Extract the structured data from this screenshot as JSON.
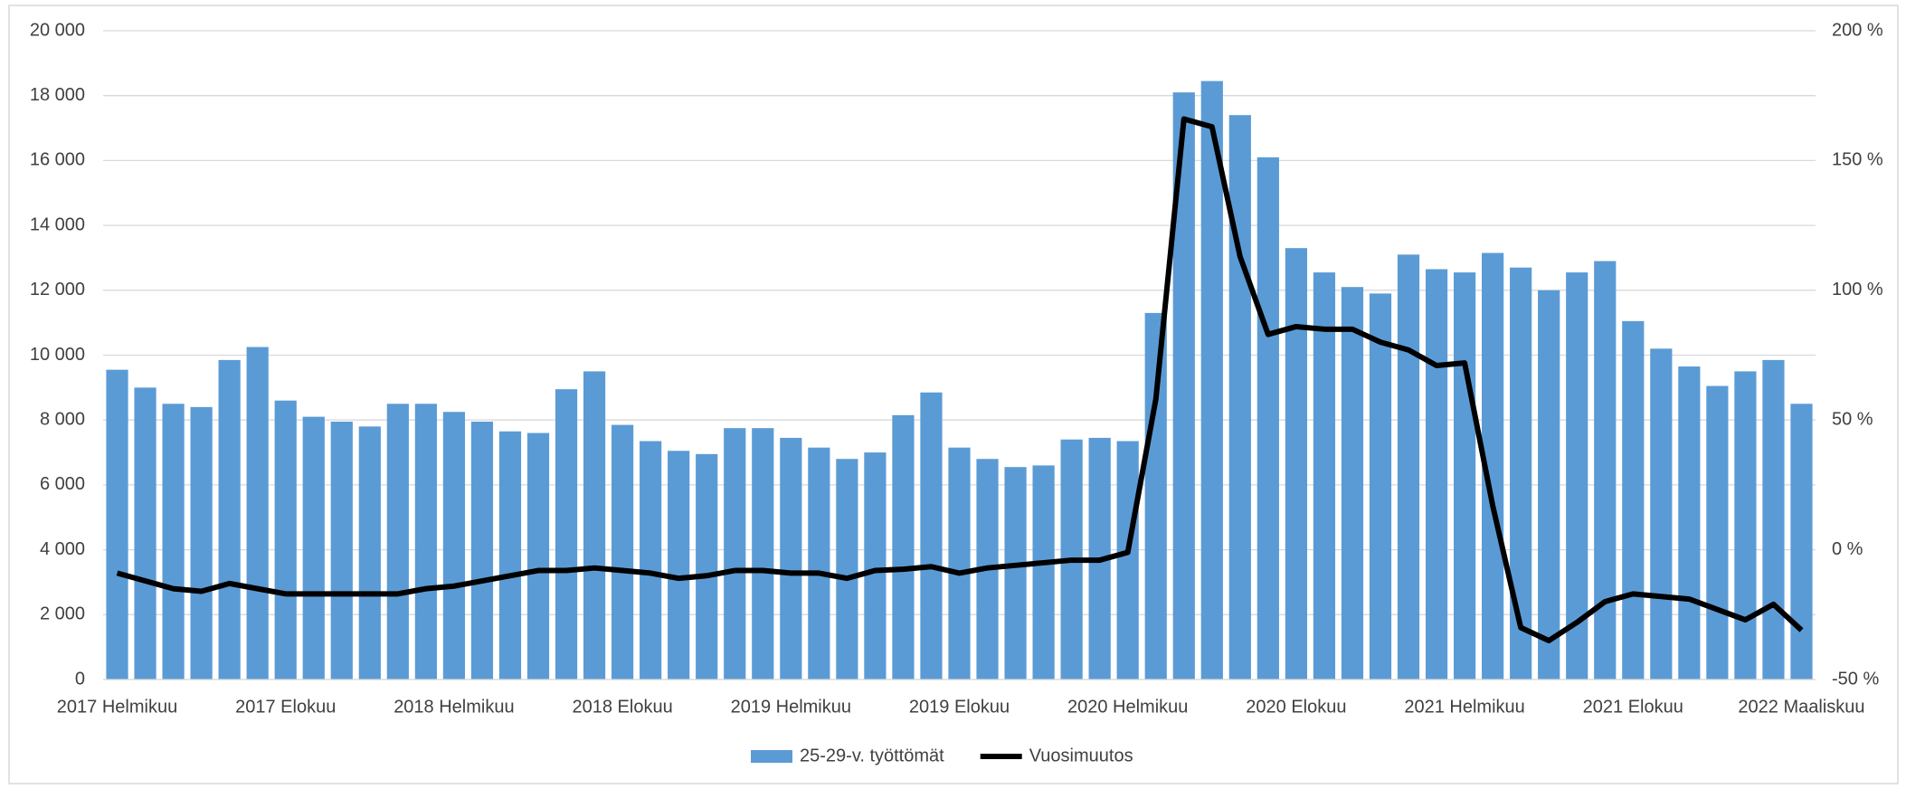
{
  "chart_data": {
    "type": "bar",
    "categories": [
      "2017 Helmikuu",
      null,
      null,
      null,
      null,
      null,
      "2017 Elokuu",
      null,
      null,
      null,
      null,
      null,
      "2018 Helmikuu",
      null,
      null,
      null,
      null,
      null,
      "2018 Elokuu",
      null,
      null,
      null,
      null,
      null,
      "2019 Helmikuu",
      null,
      null,
      null,
      null,
      null,
      "2019 Elokuu",
      null,
      null,
      null,
      null,
      null,
      "2020 Helmikuu",
      null,
      null,
      null,
      null,
      null,
      "2020 Elokuu",
      null,
      null,
      null,
      null,
      null,
      "2021 Helmikuu",
      null,
      null,
      null,
      null,
      null,
      "2021 Elokuu",
      null,
      null,
      null,
      null,
      null,
      "2022 Maaliskuu"
    ],
    "series": [
      {
        "name": "25-29-v. työttömät",
        "type": "bar",
        "color": "#5b9bd5",
        "values": [
          9550,
          9000,
          8500,
          8400,
          9850,
          10250,
          8600,
          8100,
          7950,
          7800,
          8500,
          8500,
          8250,
          7950,
          7650,
          7600,
          8950,
          9500,
          7850,
          7350,
          7050,
          6950,
          7750,
          7750,
          7450,
          7150,
          6800,
          7000,
          8150,
          8850,
          7150,
          6800,
          6550,
          6600,
          7400,
          7450,
          7350,
          11300,
          18100,
          18450,
          17400,
          16100,
          13300,
          12550,
          12100,
          11900,
          13100,
          12650,
          12550,
          13150,
          12700,
          12000,
          12550,
          12900,
          11050,
          10200,
          9650,
          9050,
          9500,
          9850,
          8500
        ]
      },
      {
        "name": "Vuosimuutos",
        "type": "line",
        "axis": "y2",
        "color": "#000000",
        "values": [
          -9,
          -12,
          -15,
          -16,
          -13,
          -15,
          -17,
          -17,
          -17,
          -17,
          -17,
          -15,
          -14,
          -12,
          -10,
          -8,
          -8,
          -7,
          -8,
          -9,
          -11,
          -10,
          -8,
          -8,
          -9,
          -9,
          -11,
          -8,
          -7.5,
          -6.5,
          -9,
          -7,
          -6,
          -5,
          -4,
          -4,
          -1,
          58,
          166,
          163,
          113,
          83,
          86,
          85,
          85,
          80,
          77,
          71,
          72,
          17,
          -30,
          -35,
          -28,
          -20,
          -17,
          -18,
          -19,
          -23,
          -27,
          -21,
          -31
        ]
      }
    ],
    "ylim": [
      0,
      20000
    ],
    "yticks": [
      0,
      {
        "value": 2000,
        "label": "2 000"
      },
      {
        "value": 4000,
        "label": "4 000"
      },
      {
        "value": 6000,
        "label": "6 000"
      },
      {
        "value": 8000,
        "label": "8 000"
      },
      {
        "value": 10000,
        "label": "10 000"
      },
      {
        "value": 12000,
        "label": "12 000"
      },
      {
        "value": 14000,
        "label": "14 000"
      },
      {
        "value": 16000,
        "label": "16 000"
      },
      {
        "value": 18000,
        "label": "18 000"
      },
      {
        "value": 20000,
        "label": "20 000"
      }
    ],
    "y2lim": [
      -50,
      200
    ],
    "y2ticks": [
      {
        "value": -50,
        "label": "-50 %"
      },
      {
        "value": 0,
        "label": "0 %"
      },
      {
        "value": 50,
        "label": "50 %"
      },
      {
        "value": 100,
        "label": "100 %"
      },
      {
        "value": 150,
        "label": "150 %"
      },
      {
        "value": 200,
        "label": "200 %"
      }
    ],
    "grid": true,
    "legend": "bottom"
  }
}
